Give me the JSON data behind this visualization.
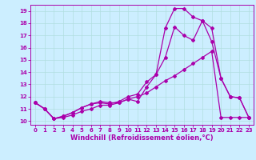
{
  "background_color": "#cceeff",
  "grid_color": "#b0dde0",
  "line_color": "#aa00aa",
  "marker": "D",
  "markersize": 2.0,
  "linewidth": 0.9,
  "xlabel": "Windchill (Refroidissement éolien,°C)",
  "xlabel_fontsize": 6,
  "tick_fontsize": 5,
  "xlim": [
    -0.5,
    23.5
  ],
  "ylim": [
    9.7,
    19.5
  ],
  "yticks": [
    10,
    11,
    12,
    13,
    14,
    15,
    16,
    17,
    18,
    19
  ],
  "xticks": [
    0,
    1,
    2,
    3,
    4,
    5,
    6,
    7,
    8,
    9,
    10,
    11,
    12,
    13,
    14,
    15,
    16,
    17,
    18,
    19,
    20,
    21,
    22,
    23
  ],
  "series1_x": [
    0,
    1,
    2,
    3,
    4,
    5,
    6,
    7,
    8,
    9,
    10,
    11,
    12,
    13,
    14,
    15,
    16,
    17,
    18,
    19,
    20,
    21,
    22,
    23
  ],
  "series1_y": [
    11.5,
    11.0,
    10.2,
    10.4,
    10.7,
    11.1,
    11.4,
    11.6,
    11.5,
    11.5,
    11.8,
    11.6,
    12.8,
    13.8,
    17.6,
    19.2,
    19.2,
    18.5,
    18.2,
    17.6,
    13.5,
    12.0,
    11.9,
    10.3
  ],
  "series2_x": [
    0,
    1,
    2,
    3,
    4,
    5,
    6,
    7,
    8,
    9,
    10,
    11,
    12,
    13,
    14,
    15,
    16,
    17,
    18,
    19,
    20,
    21,
    22,
    23
  ],
  "series2_y": [
    11.5,
    11.0,
    10.2,
    10.4,
    10.7,
    11.1,
    11.4,
    11.5,
    11.4,
    11.6,
    12.0,
    12.2,
    13.2,
    13.8,
    15.2,
    17.7,
    17.0,
    16.6,
    18.2,
    16.5,
    13.5,
    12.0,
    11.9,
    10.3
  ],
  "series3_x": [
    0,
    1,
    2,
    3,
    4,
    5,
    6,
    7,
    8,
    9,
    10,
    11,
    12,
    13,
    14,
    15,
    16,
    17,
    18,
    19,
    20,
    21,
    22,
    23
  ],
  "series3_y": [
    11.5,
    11.0,
    10.2,
    10.3,
    10.5,
    10.8,
    11.0,
    11.3,
    11.3,
    11.5,
    11.8,
    12.0,
    12.3,
    12.8,
    13.3,
    13.7,
    14.2,
    14.7,
    15.2,
    15.7,
    10.3,
    10.3,
    10.3,
    10.3
  ]
}
